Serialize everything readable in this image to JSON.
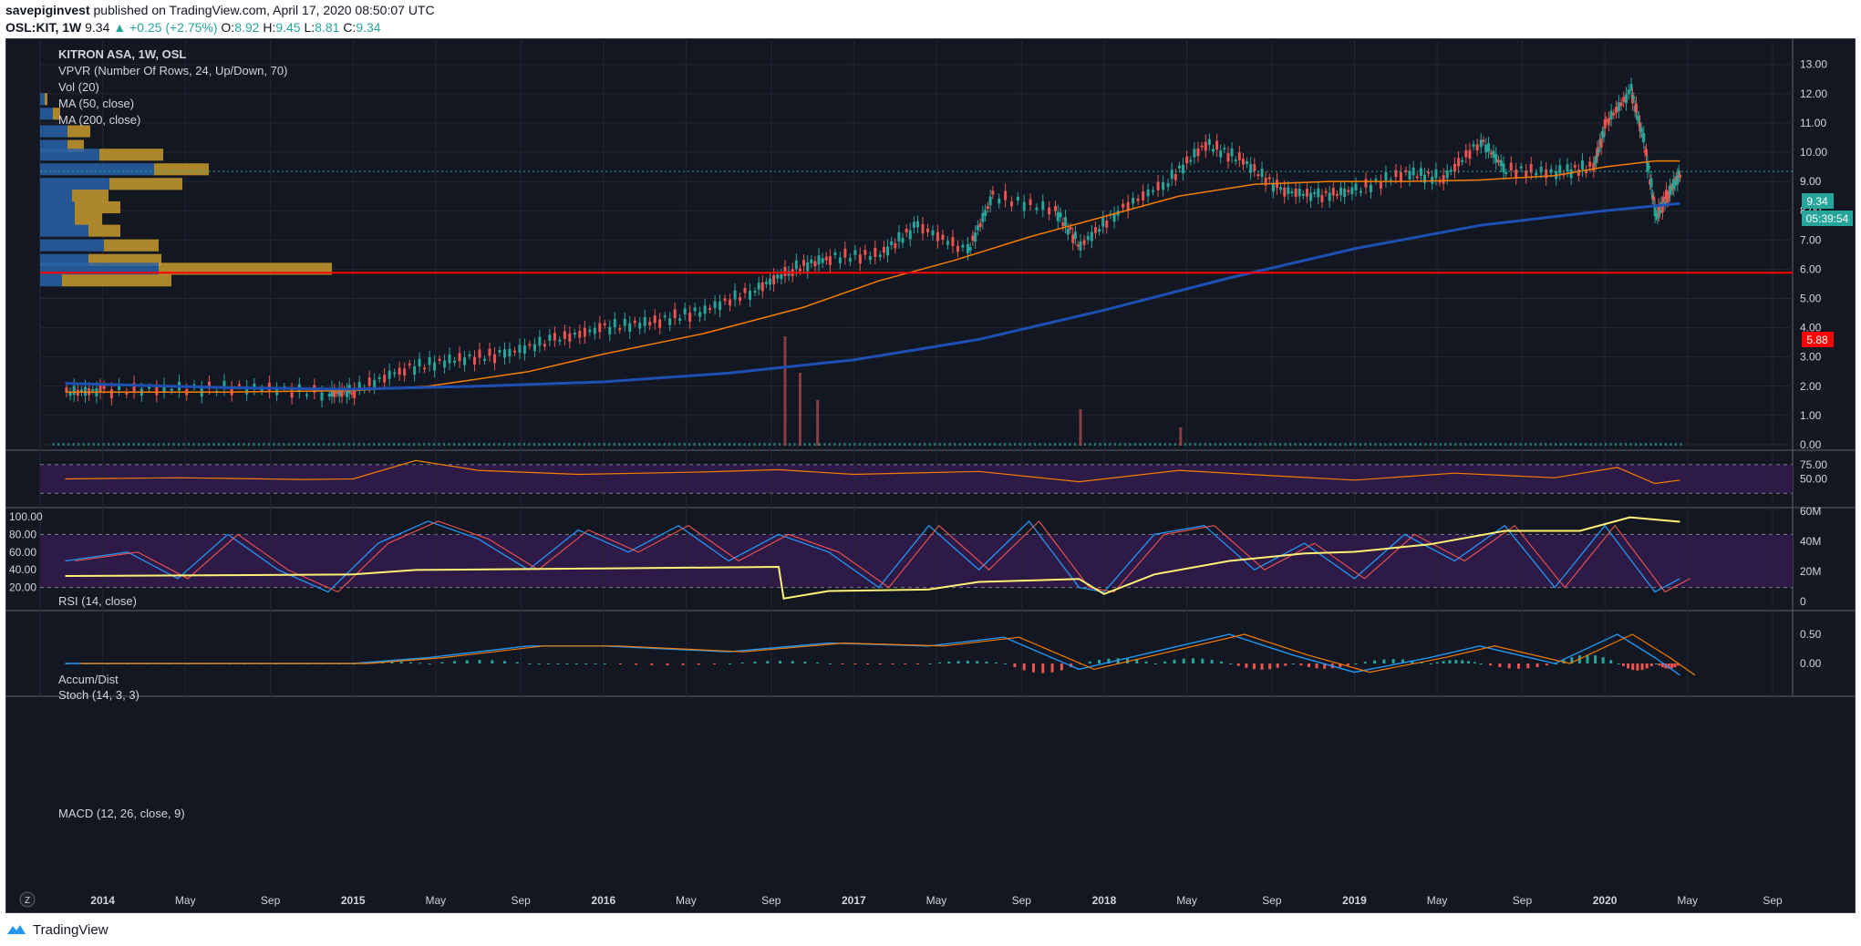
{
  "header": {
    "publisher": "savepiginvest",
    "published_text": "published on TradingView.com, April 17, 2020 08:50:07 UTC",
    "symbol": "OSL:KIT, 1W",
    "last": "9.34",
    "change": "+0.25 (+2.75%)",
    "o_label": "O:",
    "o_value": "8.92",
    "h_label": "H:",
    "h_value": "9.45",
    "l_label": "L:",
    "l_value": "8.81",
    "c_label": "C:",
    "c_value": "9.34"
  },
  "legend": {
    "title": "KITRON ASA, 1W, OSL",
    "vpvr": "VPVR (Number Of Rows, 24, Up/Down, 70)",
    "vol": "Vol (20)",
    "ma50": "MA (50, close)",
    "ma200": "MA (200, close)",
    "rsi": "RSI (14, close)",
    "accum": "Accum/Dist",
    "stoch": "Stoch (14, 3, 3)",
    "macd": "MACD (12, 26, close, 9)"
  },
  "badges": {
    "price": "9.34",
    "countdown": "05:39:54",
    "line": "5.88"
  },
  "footer": {
    "brand": "TradingView"
  },
  "colors": {
    "background": "#131722",
    "up": "#26a69a",
    "down": "#ef5350",
    "ma50": "#f57c00",
    "ma200": "#1e4fb3",
    "support": "#ff0000",
    "accum": "#fff176",
    "rsi_fill": "#2e1a47",
    "vpvr_up": "#2962a8",
    "vpvr_down": "#c79a2c"
  },
  "chart_data": {
    "type": "line",
    "x_ticks": [
      "2014",
      "May",
      "Sep",
      "2015",
      "May",
      "Sep",
      "2016",
      "May",
      "Sep",
      "2017",
      "May",
      "Sep",
      "2018",
      "May",
      "Sep",
      "2019",
      "May",
      "Sep",
      "2020",
      "May",
      "Sep"
    ],
    "price_axis_ticks": [
      "13.00",
      "12.00",
      "11.00",
      "10.00",
      "9.00",
      "8.00",
      "7.00",
      "6.00",
      "5.00",
      "4.00",
      "3.00",
      "2.00",
      "1.00",
      "0.00"
    ],
    "rsi_axis_ticks": [
      "75.00",
      "50.00"
    ],
    "stoch_axis_ticks": [
      "100.00",
      "80.00",
      "60.00",
      "40.00",
      "20.00"
    ],
    "accum_axis_ticks": [
      "60M",
      "40M",
      "20M",
      "0"
    ],
    "macd_axis_ticks": [
      "0.50",
      "0.00"
    ],
    "horizontal_level": 5.88,
    "last_price": 9.34,
    "price_series": {
      "name": "KITRON ASA",
      "x": [
        2013.85,
        2014.0,
        2014.3,
        2014.6,
        2014.9,
        2015.0,
        2015.2,
        2015.4,
        2015.6,
        2015.8,
        2016.0,
        2016.2,
        2016.4,
        2016.6,
        2016.75,
        2016.9,
        2017.1,
        2017.25,
        2017.45,
        2017.55,
        2017.8,
        2017.9,
        2018.05,
        2018.25,
        2018.4,
        2018.55,
        2018.7,
        2018.85,
        2019.0,
        2019.2,
        2019.35,
        2019.5,
        2019.6,
        2019.8,
        2019.95,
        2020.0,
        2020.1,
        2020.15,
        2020.2,
        2020.25,
        2020.3
      ],
      "values": [
        1.8,
        1.85,
        1.9,
        1.95,
        1.75,
        1.85,
        2.6,
        2.9,
        3.1,
        3.6,
        4.0,
        4.2,
        4.6,
        5.3,
        6.0,
        6.4,
        6.5,
        7.5,
        6.6,
        8.5,
        8.0,
        6.8,
        8.0,
        9.0,
        10.3,
        9.7,
        8.7,
        8.5,
        8.7,
        9.3,
        9.1,
        10.4,
        9.4,
        9.3,
        9.5,
        11.0,
        12.1,
        10.4,
        7.8,
        8.6,
        9.34
      ]
    },
    "ma50_series": {
      "name": "MA (50, close)",
      "x": [
        2013.85,
        2014.5,
        2015.0,
        2015.3,
        2015.7,
        2016.0,
        2016.4,
        2016.8,
        2017.1,
        2017.4,
        2017.7,
        2018.0,
        2018.3,
        2018.6,
        2018.9,
        2019.2,
        2019.5,
        2019.8,
        2020.0,
        2020.2,
        2020.3
      ],
      "values": [
        1.8,
        1.8,
        1.85,
        2.0,
        2.5,
        3.1,
        3.8,
        4.7,
        5.6,
        6.3,
        7.1,
        7.8,
        8.5,
        8.9,
        9.0,
        9.0,
        9.05,
        9.2,
        9.5,
        9.7,
        9.7
      ]
    },
    "ma200_series": {
      "name": "MA (200, close)",
      "x": [
        2013.85,
        2014.5,
        2015.0,
        2015.5,
        2016.0,
        2016.5,
        2017.0,
        2017.5,
        2018.0,
        2018.5,
        2019.0,
        2019.5,
        2020.0,
        2020.3
      ],
      "values": [
        2.1,
        1.95,
        1.9,
        2.0,
        2.15,
        2.45,
        2.9,
        3.6,
        4.6,
        5.7,
        6.7,
        7.5,
        8.0,
        8.25
      ]
    },
    "rsi_series": {
      "name": "RSI (14, close)",
      "x": [
        2013.85,
        2014.3,
        2014.8,
        2015.0,
        2015.25,
        2015.5,
        2015.9,
        2016.4,
        2016.7,
        2017.0,
        2017.5,
        2017.9,
        2018.3,
        2018.7,
        2019.0,
        2019.4,
        2019.8,
        2020.05,
        2020.2,
        2020.3
      ],
      "values": [
        50,
        52,
        49,
        50,
        82,
        65,
        58,
        62,
        66,
        58,
        63,
        45,
        65,
        55,
        48,
        60,
        52,
        70,
        42,
        48
      ]
    },
    "stoch_series": {
      "name": "Stoch (14, 3, 3)",
      "x": [
        2013.85,
        2014.1,
        2014.3,
        2014.5,
        2014.7,
        2014.9,
        2015.1,
        2015.3,
        2015.5,
        2015.7,
        2015.9,
        2016.1,
        2016.3,
        2016.5,
        2016.7,
        2016.9,
        2017.1,
        2017.3,
        2017.5,
        2017.7,
        2017.9,
        2018.0,
        2018.2,
        2018.4,
        2018.6,
        2018.8,
        2019.0,
        2019.2,
        2019.4,
        2019.6,
        2019.8,
        2020.0,
        2020.2,
        2020.3
      ],
      "values": [
        50,
        60,
        30,
        80,
        40,
        15,
        70,
        95,
        75,
        40,
        85,
        60,
        90,
        50,
        80,
        60,
        20,
        90,
        40,
        95,
        20,
        15,
        80,
        90,
        40,
        70,
        30,
        80,
        50,
        90,
        20,
        90,
        15,
        30
      ]
    },
    "accum_series": {
      "name": "Accum/Dist",
      "x": [
        2013.85,
        2014.5,
        2015.0,
        2015.25,
        2016.0,
        2016.7,
        2016.72,
        2016.9,
        2017.3,
        2017.5,
        2017.9,
        2018.0,
        2018.2,
        2018.5,
        2018.8,
        2019.0,
        2019.3,
        2019.6,
        2019.9,
        2020.1,
        2020.3
      ],
      "values": [
        17,
        17.5,
        18,
        21,
        22,
        23,
        2,
        7,
        8,
        13,
        15,
        5,
        18,
        27,
        32,
        33,
        38,
        47,
        47,
        56,
        53
      ]
    },
    "macd_series": {
      "name": "MACD (12, 26, close, 9)",
      "x": [
        2013.85,
        2014.5,
        2015.0,
        2015.3,
        2015.7,
        2016.0,
        2016.5,
        2016.9,
        2017.3,
        2017.6,
        2017.9,
        2018.2,
        2018.5,
        2018.75,
        2019.0,
        2019.3,
        2019.5,
        2019.8,
        2020.05,
        2020.2,
        2020.3
      ],
      "values": [
        0,
        0,
        0,
        0.1,
        0.3,
        0.3,
        0.2,
        0.35,
        0.3,
        0.45,
        -0.1,
        0.2,
        0.5,
        0.15,
        -0.15,
        0.1,
        0.3,
        0,
        0.5,
        0.1,
        -0.2
      ]
    }
  }
}
